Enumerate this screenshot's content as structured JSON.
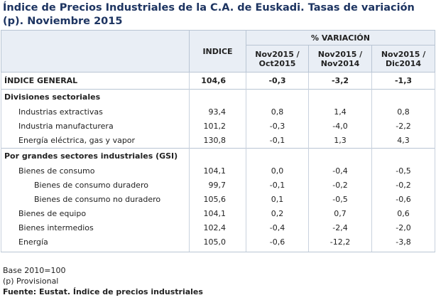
{
  "title": "Índice de Precios Industriales de la C.A. de Euskadi. Tasas de variación (p). Noviembre 2015",
  "header": {
    "variacion": "% VARIACIÓN",
    "indice": "INDICE",
    "cols": [
      [
        "Nov2015 /",
        "Oct2015"
      ],
      [
        "Nov2015 /",
        "Nov2014"
      ],
      [
        "Nov2015 /",
        "Dic2014"
      ]
    ]
  },
  "general": {
    "label": "ÍNDICE GENERAL",
    "indice": "104,6",
    "values": [
      "-0,3",
      "-3,2",
      "-1,3"
    ]
  },
  "sections": [
    {
      "heading": "Divisiones sectoriales",
      "rows": [
        {
          "label": "Industrias extractivas",
          "indice": "93,4",
          "values": [
            "0,8",
            "1,4",
            "0,8"
          ]
        },
        {
          "label": "Industria manufacturera",
          "indice": "101,2",
          "values": [
            "-0,3",
            "-4,0",
            "-2,2"
          ]
        },
        {
          "label": "Energía eléctrica, gas y vapor",
          "indice": "130,8",
          "values": [
            "-0,1",
            "1,3",
            "4,3"
          ]
        }
      ]
    },
    {
      "heading": "Por grandes sectores industriales (GSI)",
      "rows": [
        {
          "label": "Bienes de consumo",
          "indice": "104,1",
          "values": [
            "0,0",
            "-0,4",
            "-0,5"
          ],
          "children": [
            {
              "label": "Bienes de consumo duradero",
              "indice": "99,7",
              "values": [
                "-0,1",
                "-0,2",
                "-0,2"
              ]
            },
            {
              "label": "Bienes de consumo no duradero",
              "indice": "105,6",
              "values": [
                "0,1",
                "-0,5",
                "-0,6"
              ]
            }
          ]
        },
        {
          "label": "Bienes de equipo",
          "indice": "104,1",
          "values": [
            "0,2",
            "0,7",
            "0,6"
          ]
        },
        {
          "label": "Bienes intermedios",
          "indice": "102,4",
          "values": [
            "-0,4",
            "-2,4",
            "-2,0"
          ]
        },
        {
          "label": "Energía",
          "indice": "105,0",
          "values": [
            "-0,6",
            "-12,2",
            "-3,8"
          ]
        }
      ]
    }
  ],
  "notes": [
    "Base 2010=100",
    "(p) Provisional"
  ],
  "source": "Fuente: Eustat. Índice de precios industriales"
}
